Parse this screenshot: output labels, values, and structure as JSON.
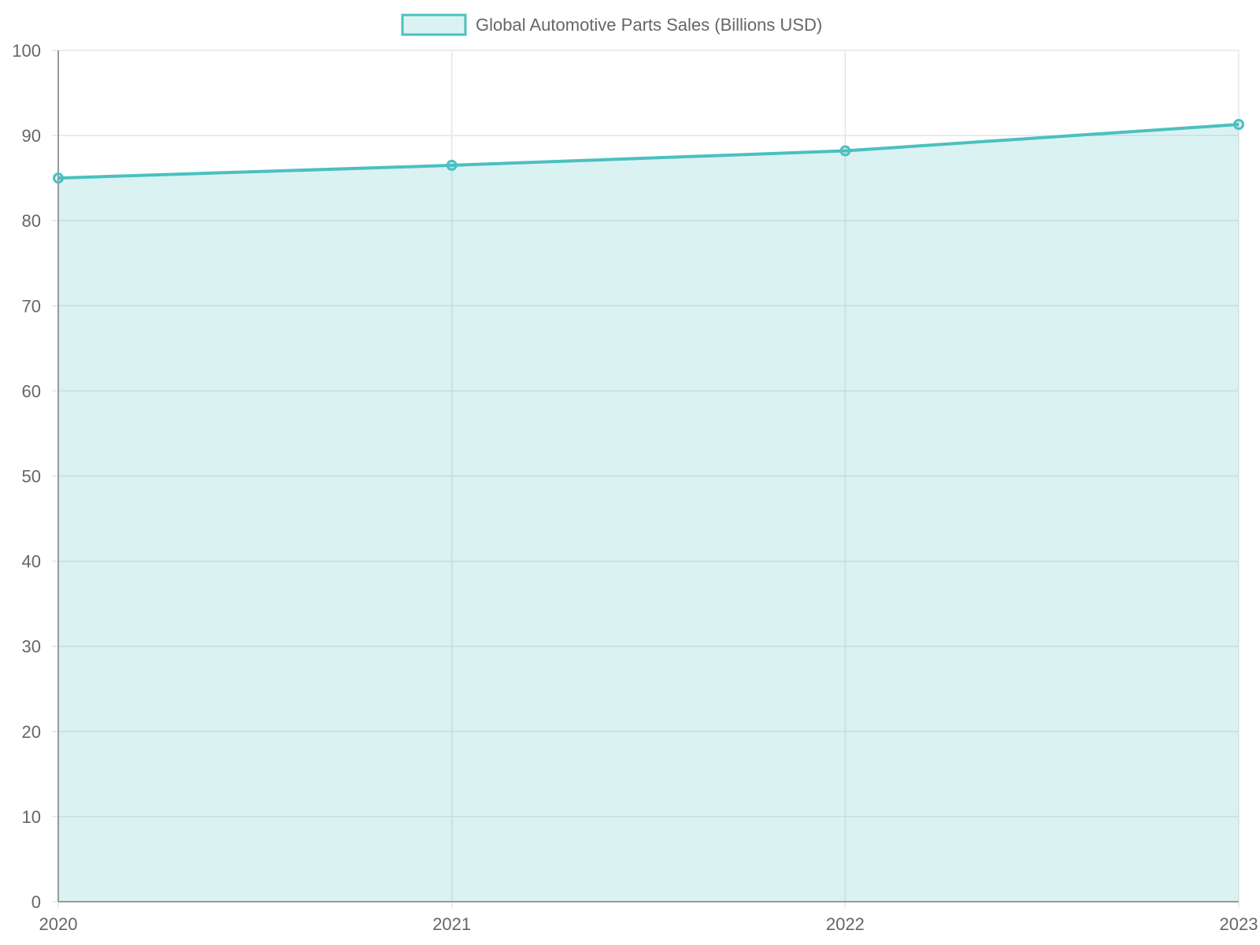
{
  "chart_data": {
    "type": "area",
    "categories": [
      "2020",
      "2021",
      "2022",
      "2023"
    ],
    "series": [
      {
        "name": "Global Automotive Parts Sales (Billions USD)",
        "values": [
          85.0,
          86.5,
          88.2,
          91.3
        ]
      }
    ],
    "title": "",
    "xlabel": "",
    "ylabel": "",
    "ylim": [
      0,
      100
    ],
    "yticks": [
      0,
      10,
      20,
      30,
      40,
      50,
      60,
      70,
      80,
      90,
      100
    ],
    "grid": true,
    "legend_position": "top-center",
    "colors": {
      "line": "#4bc0c0",
      "fill": "rgba(75, 192, 192, 0.2)",
      "grid": "#e5e5e5",
      "axis": "#999999",
      "text": "#666666"
    }
  }
}
